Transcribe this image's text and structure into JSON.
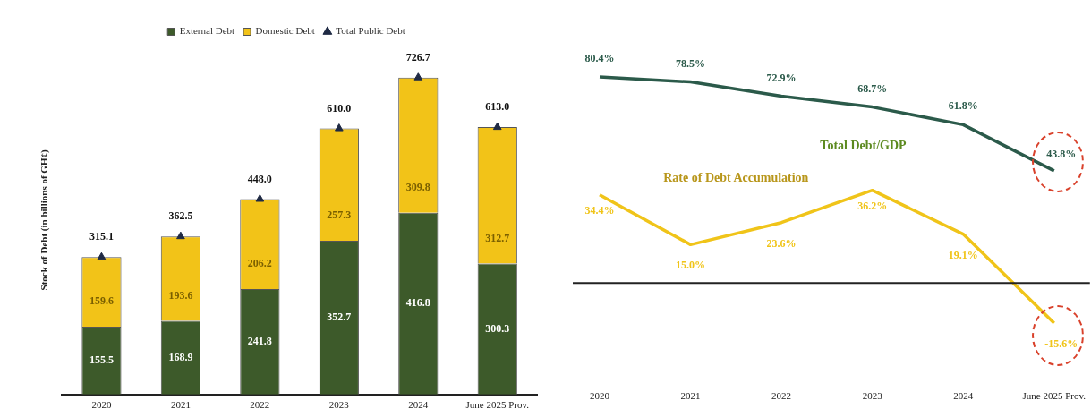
{
  "chart_data": [
    {
      "type": "bar",
      "stacked": true,
      "ylabel": "Stock of Debt (in billions of GH¢)",
      "legend": "top",
      "data_labels": true,
      "grid": false,
      "categories": [
        "2020",
        "2021",
        "2022",
        "2023",
        "2024",
        "June 2025 Prov."
      ],
      "series": [
        {
          "name": "External Debt",
          "color": "#3d5a2a",
          "values": [
            155.5,
            168.9,
            241.8,
            352.7,
            416.8,
            300.3
          ]
        },
        {
          "name": "Domestic Debt",
          "color": "#f2c318",
          "values": [
            159.6,
            193.6,
            206.2,
            257.3,
            309.8,
            312.7
          ]
        },
        {
          "name": "Total Public Debt",
          "type": "scatter",
          "marker": "triangle",
          "color": "#1f2a44",
          "values": [
            315.1,
            362.5,
            448.0,
            610.0,
            726.7,
            613.0
          ],
          "value_labels": [
            "315.1",
            "362.5",
            "448.0",
            "610.0",
            "726.7",
            "613.0"
          ]
        }
      ]
    },
    {
      "type": "line",
      "legend": false,
      "grid": false,
      "categories": [
        "2020",
        "2021",
        "2022",
        "2023",
        "2024",
        "June 2025 Prov."
      ],
      "series": [
        {
          "name": "Total Debt/GDP",
          "color": "#2b5a4a",
          "values": [
            80.4,
            78.5,
            72.9,
            68.7,
            61.8,
            43.8
          ],
          "value_labels": [
            "80.4%",
            "78.5%",
            "72.9%",
            "68.7%",
            "61.8%",
            "43.8%"
          ]
        },
        {
          "name": "Rate of Debt Accumulation",
          "color": "#f0c419",
          "values": [
            34.4,
            15.0,
            23.6,
            36.2,
            19.1,
            -15.6
          ],
          "value_labels": [
            "34.4%",
            "15.0%",
            "23.6%",
            "36.2%",
            "19.1%",
            "-15.6%"
          ]
        }
      ]
    }
  ]
}
